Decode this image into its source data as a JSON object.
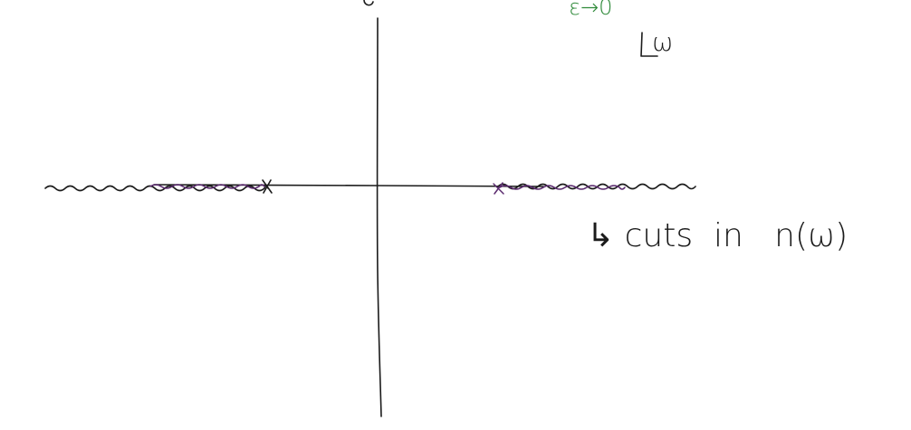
{
  "labels": {
    "top_condition": "ε→0",
    "plane_variable": "ω",
    "annotation": "↳ cuts  in   n(ω)"
  },
  "colors": {
    "ink": "#1b1b1b",
    "cut_ink": "#5a2a6e",
    "note_ink": "#2f8a3a"
  }
}
